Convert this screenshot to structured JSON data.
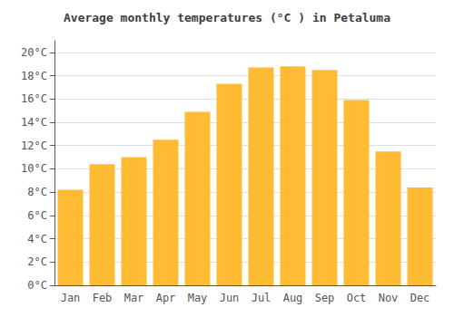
{
  "chart_data": {
    "type": "bar",
    "title": "Average monthly temperatures (°C ) in Petaluma",
    "categories": [
      "Jan",
      "Feb",
      "Mar",
      "Apr",
      "May",
      "Jun",
      "Jul",
      "Aug",
      "Sep",
      "Oct",
      "Nov",
      "Dec"
    ],
    "values": [
      8.2,
      10.4,
      11.0,
      12.5,
      14.9,
      17.3,
      18.7,
      18.8,
      18.5,
      15.9,
      11.5,
      8.4
    ],
    "color": "#FFBB33",
    "ylim": [
      0,
      21
    ],
    "yticks": [
      {
        "value": 0,
        "label": "0°C"
      },
      {
        "value": 2,
        "label": "2°C"
      },
      {
        "value": 4,
        "label": "4°C"
      },
      {
        "value": 6,
        "label": "6°C"
      },
      {
        "value": 8,
        "label": "8°C"
      },
      {
        "value": 10,
        "label": "10°C"
      },
      {
        "value": 12,
        "label": "12°C"
      },
      {
        "value": 14,
        "label": "14°C"
      },
      {
        "value": 16,
        "label": "16°C"
      },
      {
        "value": 18,
        "label": "18°C"
      },
      {
        "value": 20,
        "label": "20°C"
      }
    ],
    "grid": true
  }
}
